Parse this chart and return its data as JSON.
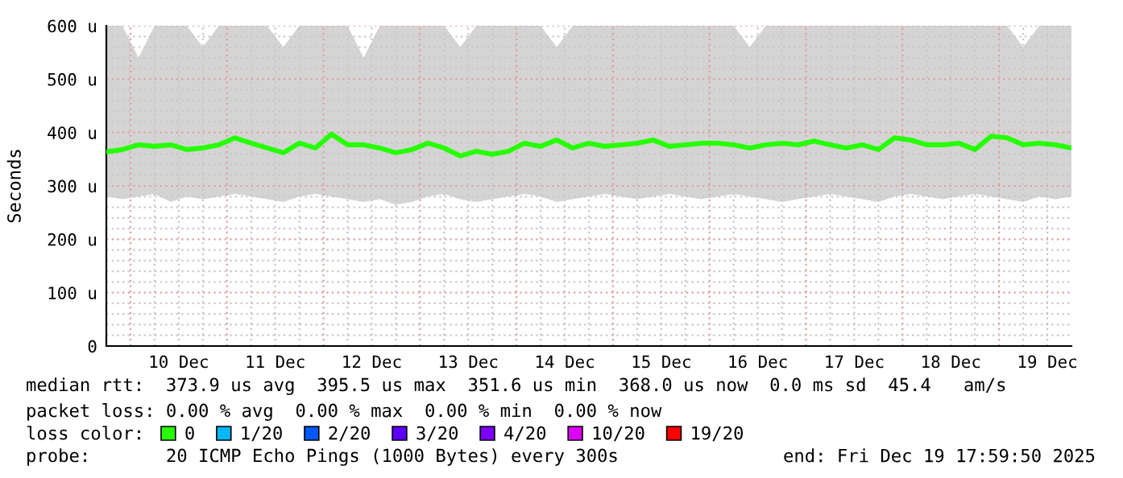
{
  "chart_data": {
    "type": "line",
    "ylabel": "Seconds",
    "legend_title": "loss color:",
    "legend": "bottom",
    "grid": true,
    "x": [
      "2025-12-09T18:00",
      "2025-12-09T22:00",
      "2025-12-10T02:00",
      "2025-12-10T06:00",
      "2025-12-10T10:00",
      "2025-12-10T14:00",
      "2025-12-10T18:00",
      "2025-12-10T22:00",
      "2025-12-11T02:00",
      "2025-12-11T06:00",
      "2025-12-11T10:00",
      "2025-12-11T14:00",
      "2025-12-11T18:00",
      "2025-12-11T22:00",
      "2025-12-12T02:00",
      "2025-12-12T06:00",
      "2025-12-12T10:00",
      "2025-12-12T14:00",
      "2025-12-12T18:00",
      "2025-12-12T22:00",
      "2025-12-13T02:00",
      "2025-12-13T06:00",
      "2025-12-13T10:00",
      "2025-12-13T14:00",
      "2025-12-13T18:00",
      "2025-12-13T22:00",
      "2025-12-14T02:00",
      "2025-12-14T06:00",
      "2025-12-14T10:00",
      "2025-12-14T14:00",
      "2025-12-14T18:00",
      "2025-12-14T22:00",
      "2025-12-15T02:00",
      "2025-12-15T06:00",
      "2025-12-15T10:00",
      "2025-12-15T14:00",
      "2025-12-15T18:00",
      "2025-12-15T22:00",
      "2025-12-16T02:00",
      "2025-12-16T06:00",
      "2025-12-16T10:00",
      "2025-12-16T14:00",
      "2025-12-16T18:00",
      "2025-12-16T22:00",
      "2025-12-17T02:00",
      "2025-12-17T06:00",
      "2025-12-17T10:00",
      "2025-12-17T14:00",
      "2025-12-17T18:00",
      "2025-12-17T22:00",
      "2025-12-18T02:00",
      "2025-12-18T06:00",
      "2025-12-18T10:00",
      "2025-12-18T14:00",
      "2025-12-18T18:00",
      "2025-12-18T22:00",
      "2025-12-19T02:00",
      "2025-12-19T06:00",
      "2025-12-19T10:00",
      "2025-12-19T14:00",
      "2025-12-19T18:00"
    ],
    "series": [
      {
        "name": "0",
        "color": "#26ff00",
        "values": [
          364,
          368,
          377,
          374,
          377,
          368,
          371,
          377,
          390,
          380,
          371,
          362,
          380,
          371,
          397,
          377,
          377,
          371,
          362,
          368,
          380,
          371,
          356,
          365,
          359,
          365,
          380,
          374,
          386,
          371,
          380,
          374,
          377,
          380,
          386,
          374,
          377,
          380,
          380,
          377,
          371,
          377,
          380,
          377,
          384,
          377,
          371,
          377,
          368,
          390,
          386,
          377,
          377,
          380,
          368,
          393,
          390,
          377,
          380,
          377,
          371
        ],
        "lower": [
          280,
          275,
          280,
          285,
          270,
          280,
          275,
          280,
          285,
          280,
          275,
          270,
          280,
          285,
          280,
          275,
          270,
          275,
          265,
          270,
          280,
          285,
          275,
          270,
          275,
          280,
          285,
          280,
          270,
          275,
          280,
          285,
          280,
          275,
          280,
          285,
          280,
          275,
          280,
          285,
          280,
          275,
          270,
          275,
          280,
          285,
          280,
          275,
          270,
          280,
          285,
          280,
          275,
          280,
          285,
          280,
          275,
          270,
          280,
          275,
          280
        ],
        "upper": [
          600,
          600,
          540,
          600,
          600,
          600,
          560,
          600,
          600,
          600,
          600,
          560,
          600,
          600,
          600,
          600,
          540,
          600,
          600,
          600,
          600,
          600,
          560,
          600,
          600,
          600,
          600,
          600,
          560,
          600,
          600,
          600,
          600,
          600,
          600,
          600,
          600,
          600,
          600,
          600,
          560,
          600,
          600,
          600,
          600,
          600,
          600,
          600,
          600,
          600,
          600,
          600,
          600,
          600,
          600,
          600,
          600,
          560,
          600,
          600,
          600
        ]
      },
      {
        "name": "1/20",
        "color": "#00b8ff",
        "values": [
          null,
          null,
          null,
          null,
          null,
          null,
          null,
          null,
          null,
          null,
          null,
          null,
          null,
          null,
          null,
          null,
          null,
          null,
          null,
          null,
          null,
          null,
          null,
          null,
          null,
          null,
          null,
          null,
          null,
          null,
          null,
          null,
          null,
          null,
          null,
          null,
          null,
          null,
          null,
          null,
          null,
          null,
          null,
          null,
          null,
          null,
          null,
          null,
          null,
          null,
          null,
          null,
          null,
          null,
          null,
          null,
          null,
          null,
          null,
          null,
          null
        ]
      },
      {
        "name": "2/20",
        "color": "#0059ff",
        "values": [
          null,
          null,
          null,
          null,
          null,
          null,
          null,
          null,
          null,
          null,
          null,
          null,
          null,
          null,
          null,
          null,
          null,
          null,
          null,
          null,
          null,
          null,
          null,
          null,
          null,
          null,
          null,
          null,
          null,
          null,
          null,
          null,
          null,
          null,
          null,
          null,
          null,
          null,
          null,
          null,
          null,
          null,
          null,
          null,
          null,
          null,
          null,
          null,
          null,
          null,
          null,
          null,
          null,
          null,
          null,
          null,
          null,
          null,
          null,
          null,
          null
        ]
      },
      {
        "name": "3/20",
        "color": "#5e00ff",
        "values": [
          null,
          null,
          null,
          null,
          null,
          null,
          null,
          null,
          null,
          null,
          null,
          null,
          null,
          null,
          null,
          null,
          null,
          null,
          null,
          null,
          null,
          null,
          null,
          null,
          null,
          null,
          null,
          null,
          null,
          null,
          null,
          null,
          null,
          null,
          null,
          null,
          null,
          null,
          null,
          null,
          null,
          null,
          null,
          null,
          null,
          null,
          null,
          null,
          null,
          null,
          null,
          null,
          null,
          null,
          null,
          null,
          null,
          null,
          null,
          null,
          null
        ]
      },
      {
        "name": "4/20",
        "color": "#7e00ff",
        "values": [
          null,
          null,
          null,
          null,
          null,
          null,
          null,
          null,
          null,
          null,
          null,
          null,
          null,
          null,
          null,
          null,
          null,
          null,
          null,
          null,
          null,
          null,
          null,
          null,
          null,
          null,
          null,
          null,
          null,
          null,
          null,
          null,
          null,
          null,
          null,
          null,
          null,
          null,
          null,
          null,
          null,
          null,
          null,
          null,
          null,
          null,
          null,
          null,
          null,
          null,
          null,
          null,
          null,
          null,
          null,
          null,
          null,
          null,
          null,
          null,
          null
        ]
      },
      {
        "name": "10/20",
        "color": "#dd00ff",
        "values": [
          null,
          null,
          null,
          null,
          null,
          null,
          null,
          null,
          null,
          null,
          null,
          null,
          null,
          null,
          null,
          null,
          null,
          null,
          null,
          null,
          null,
          null,
          null,
          null,
          null,
          null,
          null,
          null,
          null,
          null,
          null,
          null,
          null,
          null,
          null,
          null,
          null,
          null,
          null,
          null,
          null,
          null,
          null,
          null,
          null,
          null,
          null,
          null,
          null,
          null,
          null,
          null,
          null,
          null,
          null,
          null,
          null,
          null,
          null,
          null,
          null
        ]
      },
      {
        "name": "19/20",
        "color": "#ff0000",
        "values": [
          null,
          null,
          null,
          null,
          null,
          null,
          null,
          null,
          null,
          null,
          null,
          null,
          null,
          null,
          null,
          null,
          null,
          null,
          null,
          null,
          null,
          null,
          null,
          null,
          null,
          null,
          null,
          null,
          null,
          null,
          null,
          null,
          null,
          null,
          null,
          null,
          null,
          null,
          null,
          null,
          null,
          null,
          null,
          null,
          null,
          null,
          null,
          null,
          null,
          null,
          null,
          null,
          null,
          null,
          null,
          null,
          null,
          null,
          null,
          null,
          null
        ]
      }
    ],
    "xlim": [
      "2025-12-09T18:00",
      "2025-12-19T18:00"
    ],
    "xticks": [
      {
        "value": "2025-12-10T00:00",
        "label": null
      },
      {
        "value": "2025-12-10T06:00",
        "label": null
      },
      {
        "value": "2025-12-10T12:00",
        "label": "10 Dec"
      },
      {
        "value": "2025-12-10T18:00",
        "label": null
      },
      {
        "value": "2025-12-11T00:00",
        "label": null
      },
      {
        "value": "2025-12-11T06:00",
        "label": null
      },
      {
        "value": "2025-12-11T12:00",
        "label": "11 Dec"
      },
      {
        "value": "2025-12-11T18:00",
        "label": null
      },
      {
        "value": "2025-12-12T00:00",
        "label": null
      },
      {
        "value": "2025-12-12T06:00",
        "label": null
      },
      {
        "value": "2025-12-12T12:00",
        "label": "12 Dec"
      },
      {
        "value": "2025-12-12T18:00",
        "label": null
      },
      {
        "value": "2025-12-13T00:00",
        "label": null
      },
      {
        "value": "2025-12-13T06:00",
        "label": null
      },
      {
        "value": "2025-12-13T12:00",
        "label": "13 Dec"
      },
      {
        "value": "2025-12-13T18:00",
        "label": null
      },
      {
        "value": "2025-12-14T00:00",
        "label": null
      },
      {
        "value": "2025-12-14T06:00",
        "label": null
      },
      {
        "value": "2025-12-14T12:00",
        "label": "14 Dec"
      },
      {
        "value": "2025-12-14T18:00",
        "label": null
      },
      {
        "value": "2025-12-15T00:00",
        "label": null
      },
      {
        "value": "2025-12-15T06:00",
        "label": null
      },
      {
        "value": "2025-12-15T12:00",
        "label": "15 Dec"
      },
      {
        "value": "2025-12-15T18:00",
        "label": null
      },
      {
        "value": "2025-12-16T00:00",
        "label": null
      },
      {
        "value": "2025-12-16T06:00",
        "label": null
      },
      {
        "value": "2025-12-16T12:00",
        "label": "16 Dec"
      },
      {
        "value": "2025-12-16T18:00",
        "label": null
      },
      {
        "value": "2025-12-17T00:00",
        "label": null
      },
      {
        "value": "2025-12-17T06:00",
        "label": null
      },
      {
        "value": "2025-12-17T12:00",
        "label": "17 Dec"
      },
      {
        "value": "2025-12-17T18:00",
        "label": null
      },
      {
        "value": "2025-12-18T00:00",
        "label": null
      },
      {
        "value": "2025-12-18T06:00",
        "label": null
      },
      {
        "value": "2025-12-18T12:00",
        "label": "18 Dec"
      },
      {
        "value": "2025-12-18T18:00",
        "label": null
      },
      {
        "value": "2025-12-19T00:00",
        "label": null
      },
      {
        "value": "2025-12-19T06:00",
        "label": null
      },
      {
        "value": "2025-12-19T12:00",
        "label": "19 Dec"
      }
    ],
    "ylim": [
      0,
      600
    ],
    "yticks": [
      {
        "value": 0,
        "label": "0"
      },
      {
        "value": 20,
        "label": null
      },
      {
        "value": 40,
        "label": null
      },
      {
        "value": 60,
        "label": null
      },
      {
        "value": 80,
        "label": null
      },
      {
        "value": 100,
        "label": "100 u"
      },
      {
        "value": 120,
        "label": null
      },
      {
        "value": 140,
        "label": null
      },
      {
        "value": 160,
        "label": null
      },
      {
        "value": 180,
        "label": null
      },
      {
        "value": 200,
        "label": "200 u"
      },
      {
        "value": 220,
        "label": null
      },
      {
        "value": 240,
        "label": null
      },
      {
        "value": 260,
        "label": null
      },
      {
        "value": 280,
        "label": null
      },
      {
        "value": 300,
        "label": "300 u"
      },
      {
        "value": 320,
        "label": null
      },
      {
        "value": 340,
        "label": null
      },
      {
        "value": 360,
        "label": null
      },
      {
        "value": 380,
        "label": null
      },
      {
        "value": 400,
        "label": "400 u"
      },
      {
        "value": 420,
        "label": null
      },
      {
        "value": 440,
        "label": null
      },
      {
        "value": 460,
        "label": null
      },
      {
        "value": 480,
        "label": null
      },
      {
        "value": 500,
        "label": "500 u"
      },
      {
        "value": 520,
        "label": null
      },
      {
        "value": 540,
        "label": null
      },
      {
        "value": 560,
        "label": null
      },
      {
        "value": 580,
        "label": null
      },
      {
        "value": 600,
        "label": "600 u"
      }
    ],
    "annotations": [
      "median rtt:  373.9 us avg  395.5 us max  351.6 us min  368.0 us now  0.0 ms sd  45.4   am/s",
      "packet loss: 0.00 % avg  0.00 % max  0.00 % min  0.00 % now",
      "probe:       20 ICMP Echo Pings (1000 Bytes) every 300s",
      "end: Fri Dec 19 17:59:50 2025"
    ]
  }
}
